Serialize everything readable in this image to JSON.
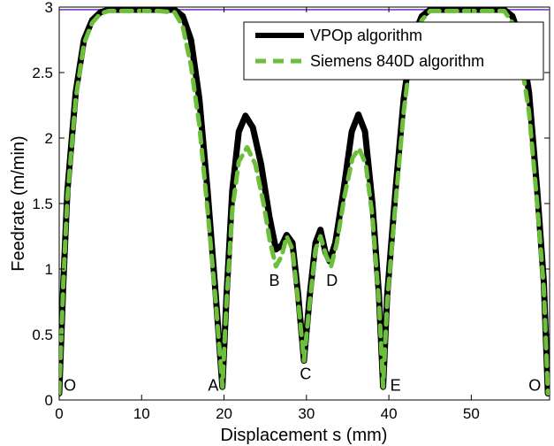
{
  "chart_data": {
    "type": "line",
    "title": "",
    "xlabel": "Displacement s (mm)",
    "ylabel": "Feedrate (m/min)",
    "xlim": [
      0,
      59.5
    ],
    "ylim": [
      0,
      3
    ],
    "xticks": [
      0,
      10,
      20,
      30,
      40,
      50
    ],
    "yticks": [
      0,
      0.5,
      1,
      1.5,
      2,
      2.5,
      3
    ],
    "grid": false,
    "legend_position": "top-right",
    "reference_line": {
      "y": 2.98,
      "color": "#7b3fbf"
    },
    "series": [
      {
        "name": "VPOp algorithm",
        "color": "#000000",
        "style": "solid",
        "points": [
          [
            0,
            0.05
          ],
          [
            0.5,
            0.9
          ],
          [
            1,
            1.6
          ],
          [
            2,
            2.35
          ],
          [
            3,
            2.75
          ],
          [
            4,
            2.9
          ],
          [
            5,
            2.96
          ],
          [
            6,
            2.98
          ],
          [
            8,
            2.98
          ],
          [
            12,
            2.98
          ],
          [
            14,
            2.98
          ],
          [
            15,
            2.93
          ],
          [
            16,
            2.75
          ],
          [
            17,
            2.3
          ],
          [
            18,
            1.6
          ],
          [
            19,
            0.8
          ],
          [
            19.8,
            0.1
          ],
          [
            20.3,
            0.8
          ],
          [
            21,
            1.6
          ],
          [
            21.8,
            2.05
          ],
          [
            22.6,
            2.17
          ],
          [
            23.5,
            2.08
          ],
          [
            24.5,
            1.8
          ],
          [
            25.5,
            1.4
          ],
          [
            26.3,
            1.15
          ],
          [
            27.0,
            1.18
          ],
          [
            27.6,
            1.26
          ],
          [
            28.3,
            1.2
          ],
          [
            29,
            0.8
          ],
          [
            29.7,
            0.3
          ],
          [
            30.4,
            0.8
          ],
          [
            31.1,
            1.2
          ],
          [
            31.7,
            1.3
          ],
          [
            32.3,
            1.13
          ],
          [
            32.8,
            1.06
          ],
          [
            33.5,
            1.2
          ],
          [
            34.5,
            1.6
          ],
          [
            35.5,
            2.05
          ],
          [
            36.3,
            2.18
          ],
          [
            37.1,
            2.05
          ],
          [
            38,
            1.5
          ],
          [
            38.8,
            0.8
          ],
          [
            39.3,
            0.1
          ],
          [
            39.8,
            0.8
          ],
          [
            40.8,
            1.6
          ],
          [
            41.8,
            2.3
          ],
          [
            42.8,
            2.75
          ],
          [
            44,
            2.93
          ],
          [
            45,
            2.98
          ],
          [
            47,
            2.98
          ],
          [
            52,
            2.98
          ],
          [
            54,
            2.98
          ],
          [
            55,
            2.93
          ],
          [
            56,
            2.75
          ],
          [
            57,
            2.35
          ],
          [
            58,
            1.6
          ],
          [
            58.8,
            0.9
          ],
          [
            59.3,
            0.05
          ]
        ]
      },
      {
        "name": "Siemens 840D algorithm",
        "color": "#6cbf3a",
        "style": "dashed",
        "points": [
          [
            0,
            0.05
          ],
          [
            0.5,
            0.9
          ],
          [
            1,
            1.55
          ],
          [
            2,
            2.3
          ],
          [
            3,
            2.72
          ],
          [
            4,
            2.88
          ],
          [
            5,
            2.95
          ],
          [
            6,
            2.97
          ],
          [
            8,
            2.97
          ],
          [
            12,
            2.97
          ],
          [
            14,
            2.96
          ],
          [
            15,
            2.85
          ],
          [
            16,
            2.55
          ],
          [
            17,
            2.1
          ],
          [
            18,
            1.45
          ],
          [
            19,
            0.75
          ],
          [
            19.8,
            0.1
          ],
          [
            20.3,
            0.75
          ],
          [
            21,
            1.45
          ],
          [
            21.8,
            1.82
          ],
          [
            22.8,
            1.93
          ],
          [
            23.8,
            1.8
          ],
          [
            24.8,
            1.5
          ],
          [
            25.6,
            1.2
          ],
          [
            26.3,
            1.02
          ],
          [
            27.0,
            1.1
          ],
          [
            27.6,
            1.25
          ],
          [
            28.3,
            1.15
          ],
          [
            29,
            0.75
          ],
          [
            29.7,
            0.3
          ],
          [
            30.4,
            0.75
          ],
          [
            31.1,
            1.15
          ],
          [
            31.7,
            1.25
          ],
          [
            32.4,
            1.1
          ],
          [
            33,
            1.02
          ],
          [
            33.7,
            1.2
          ],
          [
            34.6,
            1.55
          ],
          [
            35.6,
            1.85
          ],
          [
            36.4,
            1.92
          ],
          [
            37.2,
            1.8
          ],
          [
            38,
            1.4
          ],
          [
            38.8,
            0.75
          ],
          [
            39.3,
            0.1
          ],
          [
            39.8,
            0.75
          ],
          [
            40.8,
            1.5
          ],
          [
            41.8,
            2.2
          ],
          [
            42.8,
            2.7
          ],
          [
            44,
            2.9
          ],
          [
            45,
            2.97
          ],
          [
            47,
            2.97
          ],
          [
            52,
            2.97
          ],
          [
            54,
            2.97
          ],
          [
            55,
            2.88
          ],
          [
            56,
            2.6
          ],
          [
            57,
            2.2
          ],
          [
            58,
            1.5
          ],
          [
            58.8,
            0.85
          ],
          [
            59.3,
            0.05
          ]
        ]
      }
    ],
    "annotations": [
      {
        "text": "O",
        "x": 1.3,
        "y": 0.07
      },
      {
        "text": "A",
        "x": 18.7,
        "y": 0.07
      },
      {
        "text": "B",
        "x": 26.1,
        "y": 0.87
      },
      {
        "text": "C",
        "x": 29.9,
        "y": 0.16
      },
      {
        "text": "D",
        "x": 33.1,
        "y": 0.87
      },
      {
        "text": "E",
        "x": 40.8,
        "y": 0.07
      },
      {
        "text": "O",
        "x": 57.7,
        "y": 0.07
      }
    ]
  }
}
